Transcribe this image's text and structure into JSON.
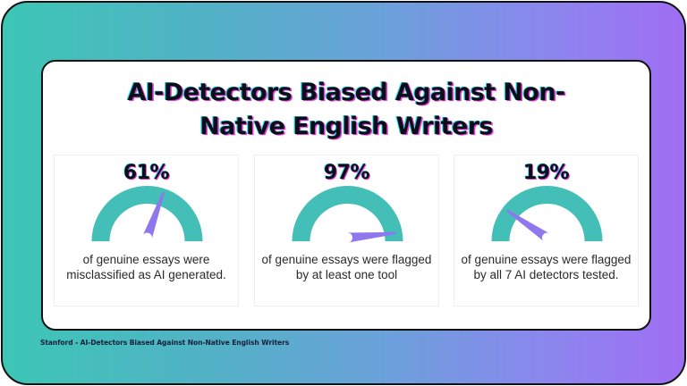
{
  "title": {
    "line1": "AI-Detectors Biased Against Non-",
    "line2": "Native English Writers"
  },
  "stats": [
    {
      "value": "61%",
      "percent": 61,
      "description_line1": "of genuine essays were",
      "description_line2": "misclassified as AI generated."
    },
    {
      "value": "97%",
      "percent": 97,
      "description_line1": "of genuine essays were flagged",
      "description_line2": "by at least one tool"
    },
    {
      "value": "19%",
      "percent": 19,
      "description_line1": "of genuine essays were flagged",
      "description_line2": "by all 7 AI detectors tested."
    }
  ],
  "footer": {
    "source": "Stanford - AI-Detectors Biased Against Non-Native English Writers"
  },
  "colors": {
    "gauge_arc": "#44bfb8",
    "gauge_needle": "#8f78ee",
    "gradient_start": "#3cc6b5",
    "gradient_end": "#a06ef3",
    "title_text": "#0d0d1a"
  }
}
